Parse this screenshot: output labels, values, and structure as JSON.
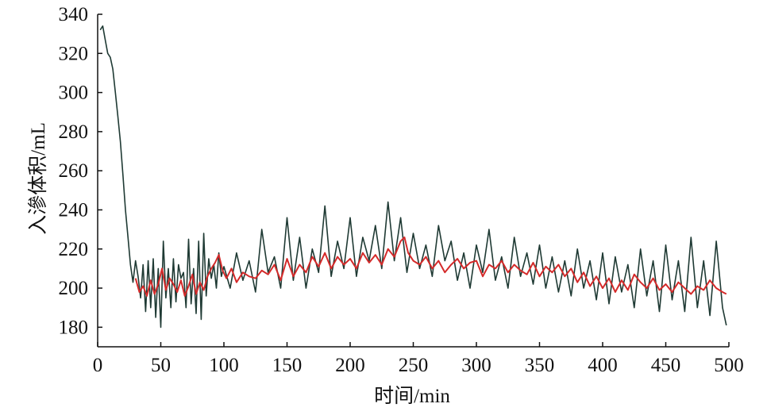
{
  "chart_data": {
    "type": "line",
    "xlabel": "时间/min",
    "ylabel": "入滲体积/mL",
    "xlim": [
      0,
      500
    ],
    "ylim": [
      170,
      340
    ],
    "xticks": [
      0,
      50,
      100,
      150,
      200,
      250,
      300,
      350,
      400,
      450,
      500
    ],
    "yticks": [
      180,
      200,
      220,
      240,
      260,
      280,
      300,
      320,
      340
    ],
    "grid": false,
    "legend": "none",
    "series": [
      {
        "color": "#1f3a34",
        "x": [
          2,
          4,
          6,
          8,
          10,
          12,
          14,
          16,
          18,
          20,
          22,
          24,
          26,
          28,
          30,
          32,
          34,
          36,
          38,
          40,
          42,
          44,
          46,
          48,
          50,
          52,
          54,
          56,
          58,
          60,
          62,
          64,
          66,
          68,
          70,
          72,
          74,
          76,
          78,
          80,
          82,
          84,
          86,
          88,
          90,
          92,
          94,
          96,
          98,
          100,
          105,
          110,
          115,
          120,
          125,
          130,
          135,
          140,
          145,
          150,
          155,
          160,
          165,
          170,
          175,
          180,
          185,
          190,
          195,
          200,
          205,
          210,
          215,
          220,
          225,
          230,
          235,
          240,
          245,
          250,
          255,
          260,
          265,
          270,
          275,
          280,
          285,
          290,
          295,
          300,
          305,
          310,
          315,
          320,
          325,
          330,
          335,
          340,
          345,
          350,
          355,
          360,
          365,
          370,
          375,
          380,
          385,
          390,
          395,
          400,
          405,
          410,
          415,
          420,
          425,
          430,
          435,
          440,
          445,
          450,
          455,
          460,
          465,
          470,
          475,
          480,
          485,
          490,
          495,
          498
        ],
        "y": [
          332,
          334,
          327,
          320,
          318,
          312,
          300,
          288,
          275,
          258,
          240,
          226,
          212,
          203,
          214,
          206,
          195,
          212,
          188,
          214,
          190,
          215,
          185,
          210,
          180,
          224,
          195,
          210,
          190,
          215,
          193,
          212,
          205,
          208,
          190,
          225,
          192,
          210,
          187,
          224,
          184,
          228,
          196,
          215,
          205,
          212,
          200,
          218,
          206,
          211,
          200,
          218,
          204,
          214,
          198,
          230,
          208,
          216,
          200,
          236,
          204,
          226,
          200,
          220,
          208,
          242,
          206,
          224,
          210,
          236,
          206,
          226,
          214,
          232,
          210,
          244,
          214,
          236,
          208,
          228,
          210,
          222,
          206,
          232,
          214,
          224,
          204,
          218,
          200,
          222,
          208,
          230,
          204,
          216,
          200,
          226,
          206,
          218,
          202,
          222,
          200,
          216,
          198,
          214,
          196,
          220,
          200,
          214,
          194,
          218,
          192,
          216,
          198,
          212,
          190,
          220,
          196,
          214,
          188,
          222,
          194,
          214,
          188,
          226,
          190,
          214,
          186,
          224,
          190,
          181
        ]
      },
      {
        "color": "#d42a2a",
        "x": [
          30,
          33,
          36,
          39,
          42,
          45,
          48,
          51,
          54,
          57,
          60,
          63,
          66,
          69,
          72,
          75,
          78,
          81,
          84,
          87,
          90,
          93,
          96,
          99,
          102,
          106,
          110,
          115,
          120,
          125,
          130,
          135,
          140,
          145,
          150,
          155,
          160,
          165,
          170,
          175,
          180,
          185,
          190,
          195,
          200,
          205,
          210,
          215,
          220,
          225,
          230,
          235,
          240,
          243,
          246,
          250,
          255,
          260,
          265,
          270,
          275,
          280,
          285,
          290,
          295,
          300,
          305,
          310,
          315,
          320,
          325,
          330,
          335,
          340,
          345,
          350,
          355,
          360,
          365,
          370,
          375,
          380,
          385,
          390,
          395,
          400,
          405,
          410,
          415,
          420,
          425,
          430,
          435,
          440,
          445,
          450,
          455,
          460,
          465,
          470,
          475,
          480,
          485,
          490,
          495,
          498
        ],
        "y": [
          205,
          198,
          201,
          196,
          204,
          197,
          202,
          210,
          199,
          205,
          202,
          198,
          204,
          196,
          201,
          207,
          197,
          203,
          199,
          206,
          210,
          213,
          217,
          209,
          205,
          210,
          203,
          208,
          206,
          205,
          209,
          207,
          212,
          204,
          215,
          206,
          212,
          208,
          216,
          211,
          218,
          210,
          216,
          212,
          215,
          210,
          218,
          213,
          217,
          212,
          220,
          216,
          224,
          226,
          218,
          214,
          212,
          216,
          210,
          214,
          208,
          212,
          215,
          210,
          213,
          214,
          206,
          212,
          210,
          214,
          208,
          212,
          209,
          207,
          213,
          206,
          211,
          208,
          212,
          206,
          210,
          203,
          208,
          201,
          206,
          200,
          205,
          198,
          204,
          199,
          207,
          203,
          200,
          205,
          199,
          202,
          198,
          203,
          200,
          197,
          201,
          199,
          204,
          200,
          198,
          197
        ]
      }
    ]
  }
}
